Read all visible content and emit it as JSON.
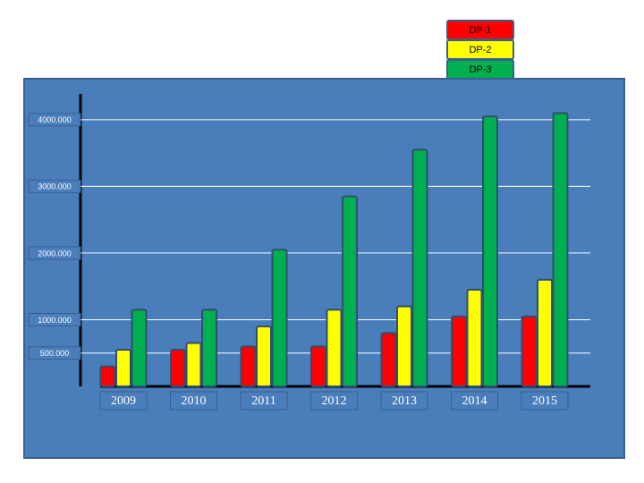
{
  "chart_data": {
    "type": "bar",
    "categories": [
      "2009",
      "2010",
      "2011",
      "2012",
      "2013",
      "2014",
      "2015"
    ],
    "series": [
      {
        "name": "DP-1",
        "color": "#ff0000",
        "values": [
          300,
          550,
          600,
          600,
          800,
          1050,
          1050
        ]
      },
      {
        "name": "DP-2",
        "color": "#ffff00",
        "values": [
          550,
          650,
          900,
          1150,
          1200,
          1450,
          1600
        ]
      },
      {
        "name": "DP-3",
        "color": "#00b050",
        "values": [
          1150,
          1150,
          2050,
          2850,
          3550,
          4050,
          4100
        ]
      }
    ],
    "ylim": [
      0,
      4400
    ],
    "yticks": [
      {
        "value": 500,
        "label": "500.000"
      },
      {
        "value": 1000,
        "label": "1000.000"
      },
      {
        "value": 2000,
        "label": "2000.000"
      },
      {
        "value": 3000,
        "label": "3000.000"
      },
      {
        "value": 4000,
        "label": "4000.000"
      }
    ],
    "grid": true
  }
}
